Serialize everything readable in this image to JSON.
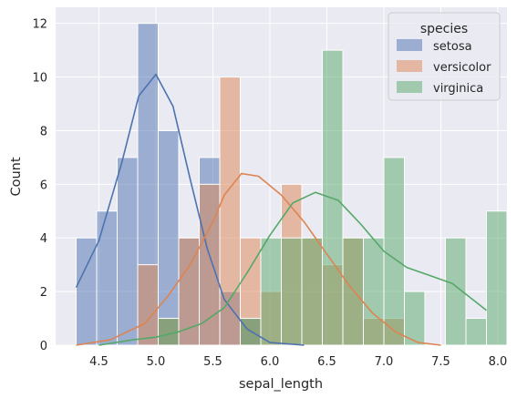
{
  "chart_data": {
    "type": "bar",
    "xlabel": "sepal_length",
    "ylabel": "Count",
    "xlim": [
      4.12,
      8.08
    ],
    "ylim": [
      0,
      12.6
    ],
    "xticks": [
      4.5,
      5.0,
      5.5,
      6.0,
      6.5,
      7.0,
      7.5,
      8.0
    ],
    "xtick_labels": [
      "4.5",
      "5.0",
      "5.5",
      "6.0",
      "6.5",
      "7.0",
      "7.5",
      "8.0"
    ],
    "yticks": [
      0,
      2,
      4,
      6,
      8,
      10,
      12
    ],
    "ytick_labels": [
      "0",
      "2",
      "4",
      "6",
      "8",
      "10",
      "12"
    ],
    "grid": true,
    "legend": {
      "title": "species",
      "placement": "top-right"
    },
    "bin_start": 4.3,
    "bin_width": 0.18,
    "series": [
      {
        "name": "setosa",
        "color": "#4c72b0",
        "counts": [
          4,
          5,
          7,
          12,
          8,
          4,
          7,
          2,
          1,
          0,
          0,
          0,
          0,
          0,
          0,
          0,
          0,
          0,
          0,
          0,
          0
        ],
        "kde": {
          "x": [
            4.3,
            4.5,
            4.7,
            4.85,
            5.0,
            5.15,
            5.3,
            5.45,
            5.6,
            5.8,
            6.0,
            6.3
          ],
          "y": [
            2.15,
            3.9,
            6.8,
            9.3,
            10.1,
            8.9,
            6.2,
            3.6,
            1.7,
            0.6,
            0.1,
            0.0
          ]
        }
      },
      {
        "name": "versicolor",
        "color": "#dd8452",
        "counts": [
          0,
          0,
          0,
          3,
          1,
          4,
          6,
          10,
          4,
          2,
          6,
          4,
          3,
          4,
          1,
          1,
          0,
          0,
          0,
          0,
          0
        ],
        "kde": {
          "x": [
            4.3,
            4.6,
            4.9,
            5.1,
            5.3,
            5.5,
            5.6,
            5.75,
            5.9,
            6.1,
            6.3,
            6.5,
            6.7,
            6.9,
            7.1,
            7.3,
            7.5
          ],
          "y": [
            0.0,
            0.2,
            0.8,
            1.8,
            3.0,
            4.6,
            5.6,
            6.4,
            6.3,
            5.6,
            4.6,
            3.4,
            2.2,
            1.2,
            0.5,
            0.1,
            0.0
          ]
        }
      },
      {
        "name": "virginica",
        "color": "#55a868",
        "counts": [
          0,
          0,
          0,
          0,
          1,
          0,
          0,
          0,
          1,
          4,
          4,
          4,
          11,
          4,
          4,
          7,
          2,
          0,
          4,
          1,
          5
        ],
        "kde": {
          "x": [
            4.5,
            4.8,
            5.0,
            5.2,
            5.4,
            5.6,
            5.8,
            6.0,
            6.2,
            6.4,
            6.6,
            6.8,
            7.0,
            7.2,
            7.4,
            7.6,
            7.75,
            7.9
          ],
          "y": [
            0.0,
            0.2,
            0.3,
            0.5,
            0.8,
            1.4,
            2.7,
            4.1,
            5.3,
            5.7,
            5.4,
            4.5,
            3.5,
            2.9,
            2.6,
            2.3,
            1.8,
            1.3
          ]
        }
      }
    ]
  }
}
